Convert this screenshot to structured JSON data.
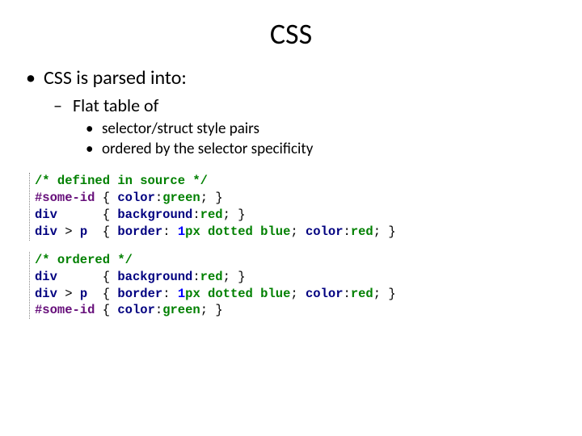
{
  "title": "CSS",
  "bullets": {
    "l1": "CSS is parsed into:",
    "l2": "Flat table of",
    "l3a": "selector/struct style pairs",
    "l3b": "ordered  by  the selector specificity"
  },
  "code": {
    "block1": {
      "comment": "/* defined in source */",
      "lines": [
        {
          "selector": "#some-id",
          "decls": [
            {
              "prop": "color",
              "value": "green"
            }
          ],
          "pad": ""
        },
        {
          "selector": "div",
          "decls": [
            {
              "prop": "background",
              "value": "red"
            }
          ],
          "pad": "     "
        },
        {
          "selector": "div > p",
          "decls": [
            {
              "prop": "border",
              "num": "1",
              "unit": "px",
              "rest": " dotted blue"
            },
            {
              "prop": "color",
              "value": "red"
            }
          ],
          "pad": " "
        }
      ]
    },
    "block2": {
      "comment": "/* ordered */",
      "lines": [
        {
          "selector": "div",
          "decls": [
            {
              "prop": "background",
              "value": "red"
            }
          ],
          "pad": "     "
        },
        {
          "selector": "div > p",
          "decls": [
            {
              "prop": "border",
              "num": "1",
              "unit": "px",
              "rest": " dotted blue"
            },
            {
              "prop": "color",
              "value": "red"
            }
          ],
          "pad": " "
        },
        {
          "selector": "#some-id",
          "decls": [
            {
              "prop": "color",
              "value": "green"
            }
          ],
          "pad": ""
        }
      ]
    }
  },
  "colors": {
    "comment": "#008000",
    "selector": "#000080",
    "idSelector": "#660e7a",
    "property": "#000080",
    "value": "#008000",
    "number": "#0000ff",
    "text": "#000000",
    "background": "#ffffff"
  },
  "typography": {
    "title_fontsize": 36,
    "l1_fontsize": 24,
    "l2_fontsize": 22,
    "l3_fontsize": 19,
    "code_fontsize": 15.5,
    "body_font": "Calibri",
    "code_font": "Consolas"
  }
}
